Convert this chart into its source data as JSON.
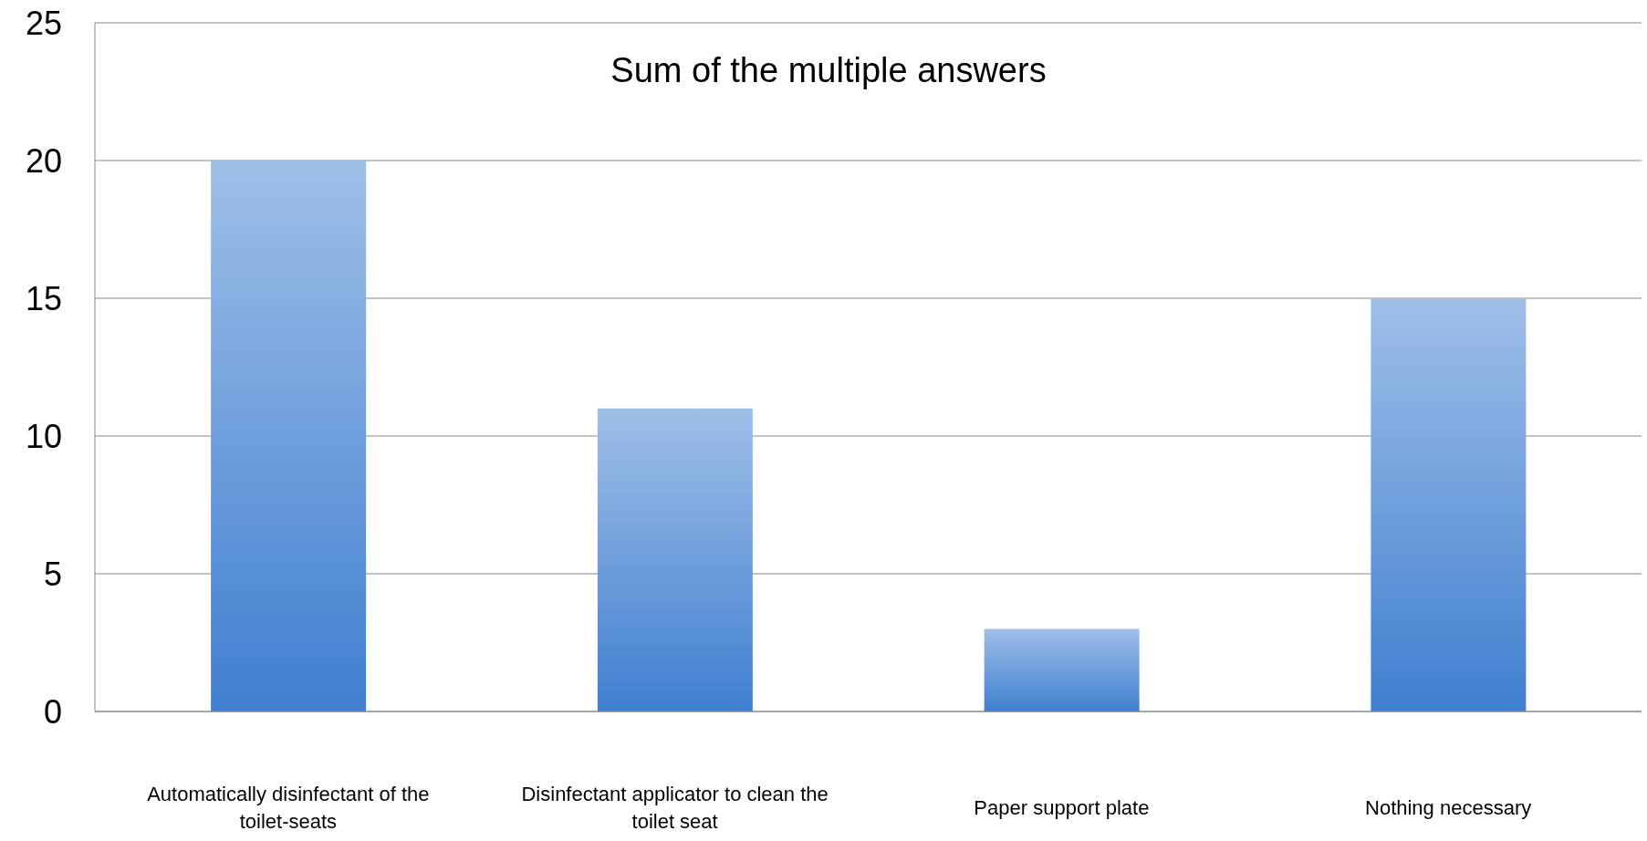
{
  "chart_data": {
    "type": "bar",
    "title": "Sum of the multiple answers",
    "categories": [
      "Automatically disinfectant of the toilet-seats",
      "Disinfectant applicator to clean the toilet seat",
      "Paper support plate",
      "Nothing necessary"
    ],
    "values": [
      20,
      11,
      3,
      15
    ],
    "color": "#3f7fd0",
    "ylim": [
      0,
      25
    ],
    "yticks": [
      0,
      5,
      10,
      15,
      20,
      25
    ],
    "grid": "y"
  }
}
